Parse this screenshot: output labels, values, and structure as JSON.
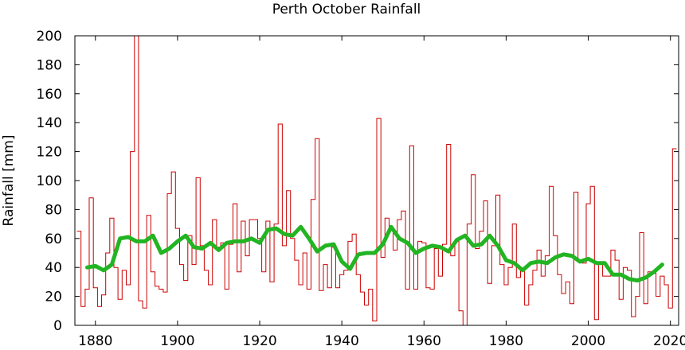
{
  "chart_data": {
    "type": "line",
    "title": "Perth October Rainfall",
    "xlabel": "",
    "ylabel": "Rainfall [mm]",
    "xlim": [
      1875,
      2022
    ],
    "ylim": [
      0,
      200
    ],
    "xticks": [
      1880,
      1900,
      1920,
      1940,
      1960,
      1980,
      2000,
      2020
    ],
    "yticks": [
      0,
      20,
      40,
      60,
      80,
      100,
      120,
      140,
      160,
      180,
      200
    ],
    "grid": false,
    "series": [
      {
        "style": "steps",
        "color": "#cc0000",
        "x": [
          1876,
          1877,
          1878,
          1879,
          1880,
          1881,
          1882,
          1883,
          1884,
          1885,
          1886,
          1887,
          1888,
          1889,
          1890,
          1891,
          1892,
          1893,
          1894,
          1895,
          1896,
          1897,
          1898,
          1899,
          1900,
          1901,
          1902,
          1903,
          1904,
          1905,
          1906,
          1907,
          1908,
          1909,
          1910,
          1911,
          1912,
          1913,
          1914,
          1915,
          1916,
          1917,
          1918,
          1919,
          1920,
          1921,
          1922,
          1923,
          1924,
          1925,
          1926,
          1927,
          1928,
          1929,
          1930,
          1931,
          1932,
          1933,
          1934,
          1935,
          1936,
          1937,
          1938,
          1939,
          1940,
          1941,
          1942,
          1943,
          1944,
          1945,
          1946,
          1947,
          1948,
          1949,
          1950,
          1951,
          1952,
          1953,
          1954,
          1955,
          1956,
          1957,
          1958,
          1959,
          1960,
          1961,
          1962,
          1963,
          1964,
          1965,
          1966,
          1967,
          1968,
          1969,
          1970,
          1971,
          1972,
          1973,
          1974,
          1975,
          1976,
          1977,
          1978,
          1979,
          1980,
          1981,
          1982,
          1983,
          1984,
          1985,
          1986,
          1987,
          1988,
          1989,
          1990,
          1991,
          1992,
          1993,
          1994,
          1995,
          1996,
          1997,
          1998,
          1999,
          2000,
          2001,
          2002,
          2003,
          2004,
          2005,
          2006,
          2007,
          2008,
          2009,
          2010,
          2011,
          2012,
          2013,
          2014,
          2015,
          2016,
          2017,
          2018,
          2019,
          2020,
          2021
        ],
        "y": [
          65,
          13,
          25,
          88,
          26,
          13,
          21,
          50,
          74,
          40,
          18,
          38,
          28,
          120,
          200,
          17,
          12,
          76,
          37,
          27,
          25,
          23,
          91,
          106,
          67,
          42,
          31,
          62,
          42,
          102,
          55,
          38,
          28,
          73,
          54,
          57,
          25,
          56,
          84,
          37,
          72,
          48,
          73,
          73,
          60,
          37,
          72,
          30,
          70,
          139,
          55,
          93,
          60,
          45,
          28,
          50,
          25,
          87,
          129,
          24,
          42,
          26,
          54,
          26,
          35,
          38,
          58,
          63,
          35,
          23,
          14,
          25,
          3,
          143,
          47,
          74,
          68,
          52,
          73,
          79,
          25,
          124,
          25,
          58,
          57,
          26,
          25,
          53,
          34,
          56,
          125,
          48,
          58,
          10,
          0,
          70,
          104,
          53,
          65,
          86,
          29,
          55,
          90,
          42,
          28,
          40,
          70,
          33,
          38,
          14,
          28,
          38,
          52,
          34,
          48,
          96,
          62,
          35,
          22,
          30,
          15,
          92,
          44,
          43,
          84,
          96,
          4,
          43,
          34,
          34,
          52,
          45,
          18,
          40,
          38,
          6,
          20,
          64,
          15,
          37,
          36,
          20,
          34,
          28,
          12,
          122
        ]
      },
      {
        "style": "smoothed",
        "color": "#22b422",
        "x": [
          1878,
          1880,
          1882,
          1884,
          1886,
          1888,
          1890,
          1892,
          1894,
          1896,
          1898,
          1900,
          1902,
          1904,
          1906,
          1908,
          1910,
          1912,
          1914,
          1916,
          1918,
          1920,
          1922,
          1924,
          1926,
          1928,
          1930,
          1932,
          1934,
          1936,
          1938,
          1940,
          1942,
          1944,
          1946,
          1948,
          1950,
          1952,
          1954,
          1956,
          1958,
          1960,
          1962,
          1964,
          1966,
          1968,
          1970,
          1972,
          1974,
          1976,
          1978,
          1980,
          1982,
          1984,
          1986,
          1988,
          1990,
          1992,
          1994,
          1996,
          1998,
          2000,
          2002,
          2004,
          2006,
          2008,
          2010,
          2012,
          2014,
          2016,
          2018
        ],
        "y": [
          40,
          41,
          38,
          42,
          60,
          61,
          58,
          58,
          62,
          50,
          53,
          58,
          62,
          54,
          53,
          57,
          52,
          57,
          58,
          58,
          60,
          57,
          66,
          67,
          63,
          62,
          68,
          60,
          51,
          55,
          56,
          44,
          39,
          49,
          50,
          50,
          56,
          68,
          60,
          57,
          50,
          53,
          55,
          54,
          51,
          59,
          62,
          55,
          56,
          62,
          55,
          45,
          43,
          38,
          43,
          44,
          43,
          47,
          49,
          48,
          44,
          46,
          43,
          43,
          35,
          35,
          32,
          31,
          33,
          37,
          42
        ]
      }
    ]
  }
}
